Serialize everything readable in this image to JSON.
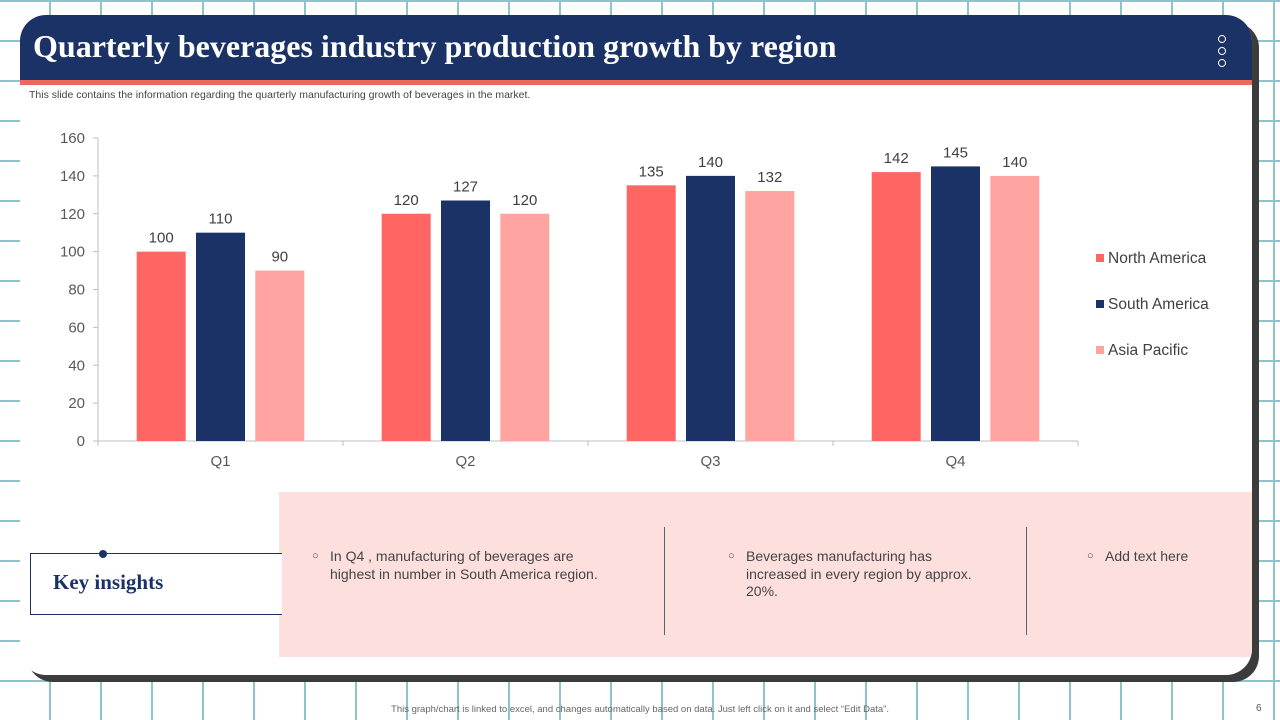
{
  "title": "Quarterly beverages industry production growth by region",
  "subtitle": "This slide contains the information regarding the quarterly manufacturing  growth of beverages in the market.",
  "key_insights": {
    "title": "Key insights",
    "items": [
      "In Q4 , manufacturing of beverages are highest in number in South America region.",
      "Beverages manufacturing has increased in every region by approx. 20%.",
      "Add text here"
    ]
  },
  "footer_note": "This graph/chart is linked to excel, and changes automatically based on data. Just left click on it and select “Edit Data”.",
  "page_number": "6",
  "colors": {
    "header": "#1b3266",
    "accent_line": "#ef6560",
    "north_america": "#ff6663",
    "south_america": "#1b3266",
    "asia_pacific": "#ffa4a0",
    "panel": "#fde0de"
  },
  "chart_data": {
    "type": "bar",
    "title": "",
    "xlabel": "",
    "ylabel": "",
    "categories": [
      "Q1",
      "Q2",
      "Q3",
      "Q4"
    ],
    "series": [
      {
        "name": "North America",
        "color": "#ff6663",
        "values": [
          100,
          120,
          135,
          142
        ]
      },
      {
        "name": "South America",
        "color": "#1b3266",
        "values": [
          110,
          127,
          140,
          145
        ]
      },
      {
        "name": "Asia Pacific",
        "color": "#ffa4a0",
        "values": [
          90,
          120,
          132,
          140
        ]
      }
    ],
    "ylim": [
      0,
      160
    ],
    "yticks": [
      0,
      20,
      40,
      60,
      80,
      100,
      120,
      140,
      160
    ],
    "grid": false,
    "legend": "right"
  }
}
